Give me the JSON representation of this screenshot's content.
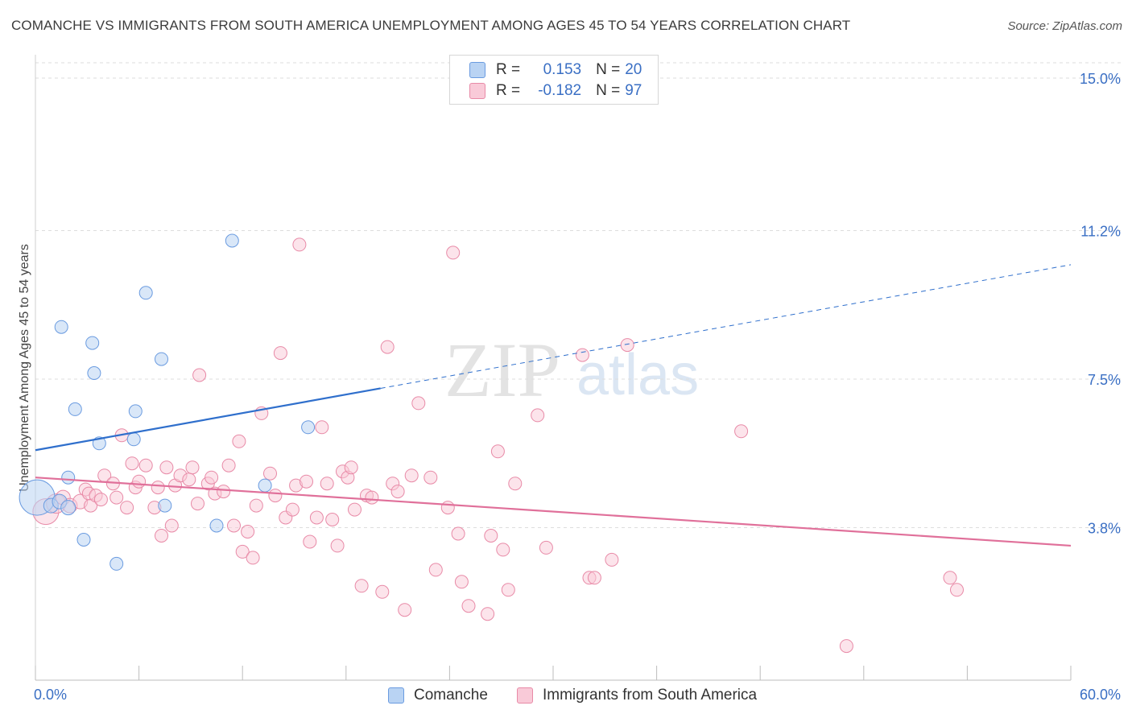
{
  "title": "COMANCHE VS IMMIGRANTS FROM SOUTH AMERICA UNEMPLOYMENT AMONG AGES 45 TO 54 YEARS CORRELATION CHART",
  "source": "Source: ZipAtlas.com",
  "watermark": {
    "zip": "ZIP",
    "atlas": "atlas"
  },
  "legend": {
    "r_label": "R =",
    "n_label": "N =",
    "rows": [
      {
        "r": "0.153",
        "n": "20",
        "color": "#a9c8f0",
        "border": "#6a9be0"
      },
      {
        "r": "-0.182",
        "n": "97",
        "color": "#f7bccd",
        "border": "#e88aa7"
      }
    ]
  },
  "bottom_legend": [
    {
      "label": "Comanche",
      "color": "#b9d3f3",
      "border": "#6a9be0"
    },
    {
      "label": "Immigrants from South America",
      "color": "#f9cad8",
      "border": "#e88aa7"
    }
  ],
  "chart_data": {
    "type": "scatter",
    "title": "COMANCHE VS IMMIGRANTS FROM SOUTH AMERICA UNEMPLOYMENT AMONG AGES 45 TO 54 YEARS CORRELATION CHART",
    "xlabel": "",
    "ylabel": "Unemployment Among Ages 45 to 54 years",
    "xlim": [
      0,
      60
    ],
    "ylim": [
      0,
      15.5
    ],
    "x_tick_labels": [
      "0.0%",
      "60.0%"
    ],
    "y_ticks": [
      3.8,
      7.5,
      11.2,
      15.0
    ],
    "y_tick_labels": [
      "3.8%",
      "7.5%",
      "11.2%",
      "15.0%"
    ],
    "grid": true,
    "legend_position": "top-center",
    "series": [
      {
        "name": "Comanche",
        "color": "#6a9be0",
        "fill": "#b9d3f3",
        "line_color": "#2f6fcc",
        "trend": {
          "x0": 0.0,
          "y0": 5.73,
          "x1": 20.0,
          "y1": 7.27,
          "dash_to_x": 60.0,
          "dash_to_y": 10.35
        },
        "points": [
          [
            0.1,
            4.55,
            22
          ],
          [
            0.9,
            4.35,
            9
          ],
          [
            1.4,
            4.45,
            9
          ],
          [
            1.9,
            4.3,
            9
          ],
          [
            1.5,
            8.8,
            8
          ],
          [
            1.9,
            5.05,
            8
          ],
          [
            2.3,
            6.75,
            8
          ],
          [
            2.8,
            3.5,
            8
          ],
          [
            3.3,
            8.4,
            8
          ],
          [
            3.4,
            7.65,
            8
          ],
          [
            3.7,
            5.9,
            8
          ],
          [
            4.7,
            2.9,
            8
          ],
          [
            5.7,
            6.0,
            8
          ],
          [
            5.8,
            6.7,
            8
          ],
          [
            6.4,
            9.65,
            8
          ],
          [
            7.3,
            8.0,
            8
          ],
          [
            7.5,
            4.35,
            8
          ],
          [
            10.5,
            3.85,
            8
          ],
          [
            11.4,
            10.95,
            8
          ],
          [
            13.3,
            4.85,
            8
          ],
          [
            15.8,
            6.3,
            8
          ]
        ]
      },
      {
        "name": "Immigrants from South America",
        "color": "#e88aa7",
        "fill": "#f9cad8",
        "line_color": "#e0709a",
        "trend": {
          "x0": 0.0,
          "y0": 5.05,
          "x1": 60.0,
          "y1": 3.35
        },
        "points": [
          [
            0.6,
            4.2,
            16
          ],
          [
            1.2,
            4.4,
            12
          ],
          [
            1.6,
            4.55,
            9
          ],
          [
            2.0,
            4.35,
            9
          ],
          [
            2.6,
            4.45,
            9
          ],
          [
            2.9,
            4.75,
            8
          ],
          [
            3.1,
            4.65,
            8
          ],
          [
            3.2,
            4.35,
            8
          ],
          [
            3.5,
            4.6,
            8
          ],
          [
            3.8,
            4.5,
            8
          ],
          [
            4.0,
            5.1,
            8
          ],
          [
            4.5,
            4.9,
            8
          ],
          [
            4.7,
            4.55,
            8
          ],
          [
            5.0,
            6.1,
            8
          ],
          [
            5.3,
            4.3,
            8
          ],
          [
            5.6,
            5.4,
            8
          ],
          [
            5.8,
            4.8,
            8
          ],
          [
            6.0,
            4.95,
            8
          ],
          [
            6.4,
            5.35,
            8
          ],
          [
            6.9,
            4.3,
            8
          ],
          [
            7.1,
            4.8,
            8
          ],
          [
            7.3,
            3.6,
            8
          ],
          [
            7.6,
            5.3,
            8
          ],
          [
            7.9,
            3.85,
            8
          ],
          [
            8.1,
            4.85,
            8
          ],
          [
            8.4,
            5.1,
            8
          ],
          [
            8.9,
            5.0,
            8
          ],
          [
            9.1,
            5.3,
            8
          ],
          [
            9.4,
            4.4,
            8
          ],
          [
            9.5,
            7.6,
            8
          ],
          [
            10.0,
            4.9,
            8
          ],
          [
            10.2,
            5.05,
            8
          ],
          [
            10.4,
            4.65,
            8
          ],
          [
            10.9,
            4.7,
            8
          ],
          [
            11.2,
            5.35,
            8
          ],
          [
            11.5,
            3.85,
            8
          ],
          [
            11.8,
            5.95,
            8
          ],
          [
            12.0,
            3.2,
            8
          ],
          [
            12.3,
            3.7,
            8
          ],
          [
            12.6,
            3.05,
            8
          ],
          [
            12.8,
            4.35,
            8
          ],
          [
            13.1,
            6.65,
            8
          ],
          [
            13.6,
            5.15,
            8
          ],
          [
            13.9,
            4.6,
            8
          ],
          [
            14.2,
            8.15,
            8
          ],
          [
            14.5,
            4.05,
            8
          ],
          [
            14.9,
            4.25,
            8
          ],
          [
            15.1,
            4.85,
            8
          ],
          [
            15.3,
            10.85,
            8
          ],
          [
            15.7,
            4.95,
            8
          ],
          [
            15.9,
            3.45,
            8
          ],
          [
            16.3,
            4.05,
            8
          ],
          [
            16.6,
            6.3,
            8
          ],
          [
            16.9,
            4.9,
            8
          ],
          [
            17.2,
            4.0,
            8
          ],
          [
            17.5,
            3.35,
            8
          ],
          [
            17.8,
            5.2,
            8
          ],
          [
            18.1,
            5.05,
            8
          ],
          [
            18.3,
            5.3,
            8
          ],
          [
            18.5,
            4.25,
            8
          ],
          [
            18.9,
            2.35,
            8
          ],
          [
            19.2,
            4.6,
            8
          ],
          [
            19.5,
            4.55,
            8
          ],
          [
            20.1,
            2.2,
            8
          ],
          [
            20.4,
            8.3,
            8
          ],
          [
            20.7,
            4.9,
            8
          ],
          [
            21.0,
            4.7,
            8
          ],
          [
            21.4,
            1.75,
            8
          ],
          [
            21.8,
            5.1,
            8
          ],
          [
            22.2,
            6.9,
            8
          ],
          [
            22.9,
            5.05,
            8
          ],
          [
            23.2,
            2.75,
            8
          ],
          [
            23.9,
            4.3,
            8
          ],
          [
            24.2,
            10.65,
            8
          ],
          [
            24.5,
            3.65,
            8
          ],
          [
            24.7,
            2.45,
            8
          ],
          [
            25.1,
            1.85,
            8
          ],
          [
            26.8,
            5.7,
            8
          ],
          [
            26.2,
            1.65,
            8
          ],
          [
            26.4,
            3.6,
            8
          ],
          [
            27.1,
            3.25,
            8
          ],
          [
            27.4,
            2.25,
            8
          ],
          [
            27.8,
            4.9,
            8
          ],
          [
            29.1,
            6.6,
            8
          ],
          [
            29.6,
            3.3,
            8
          ],
          [
            31.7,
            8.1,
            8
          ],
          [
            32.1,
            2.55,
            8
          ],
          [
            32.4,
            2.55,
            8
          ],
          [
            33.4,
            3.0,
            8
          ],
          [
            34.3,
            8.35,
            8
          ],
          [
            40.9,
            6.2,
            8
          ],
          [
            47.0,
            0.85,
            8
          ],
          [
            53.0,
            2.55,
            8
          ],
          [
            53.4,
            2.25,
            8
          ]
        ]
      }
    ]
  }
}
